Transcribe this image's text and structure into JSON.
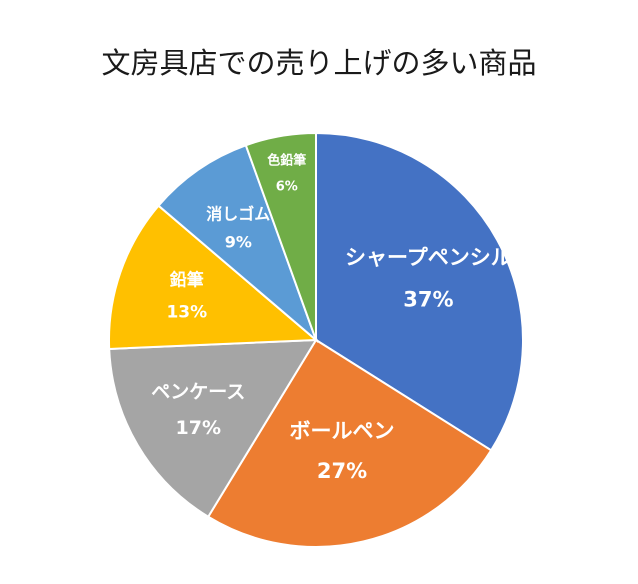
{
  "chart_data": {
    "type": "pie",
    "title": "文房具店での売り上げの多い商品",
    "categories": [
      "シャープペンシル",
      "ボールペン",
      "ペンケース",
      "鉛筆",
      "消しゴム",
      "色鉛筆"
    ],
    "values": [
      37,
      27,
      17,
      13,
      9,
      6
    ],
    "labels": [
      "37%",
      "27%",
      "17%",
      "13%",
      "9%",
      "6%"
    ],
    "colors": [
      "#4472C4",
      "#ED7D31",
      "#A5A5A5",
      "#FFC000",
      "#5B9BD5",
      "#70AD47"
    ],
    "start_angle": "12 o'clock",
    "direction": "clockwise",
    "legend": "none",
    "data_labels": "inside"
  }
}
